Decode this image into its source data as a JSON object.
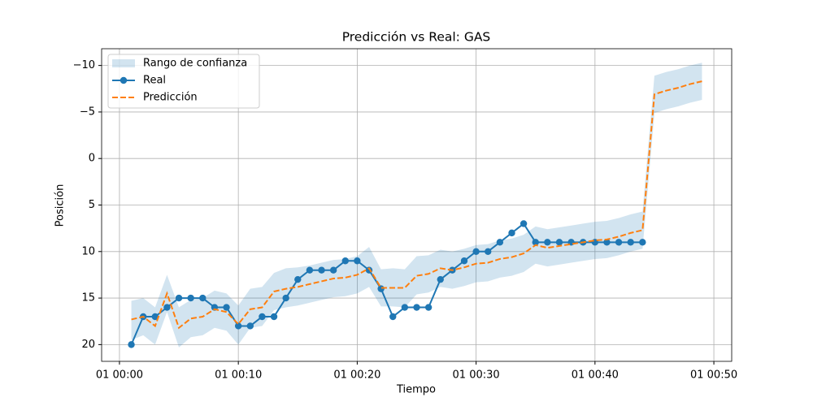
{
  "chart_data": {
    "type": "line",
    "title": "Predicción vs Real: GAS",
    "x_label": "Tiempo",
    "y_label": "Posición",
    "x": [
      "01 00:01",
      "01 00:02",
      "01 00:03",
      "01 00:04",
      "01 00:05",
      "01 00:06",
      "01 00:07",
      "01 00:08",
      "01 00:09",
      "01 00:10",
      "01 00:11",
      "01 00:12",
      "01 00:13",
      "01 00:14",
      "01 00:15",
      "01 00:16",
      "01 00:17",
      "01 00:18",
      "01 00:19",
      "01 00:20",
      "01 00:21",
      "01 00:22",
      "01 00:23",
      "01 00:24",
      "01 00:25",
      "01 00:26",
      "01 00:27",
      "01 00:28",
      "01 00:29",
      "01 00:30",
      "01 00:31",
      "01 00:32",
      "01 00:33",
      "01 00:34",
      "01 00:35",
      "01 00:36",
      "01 00:37",
      "01 00:38",
      "01 00:39",
      "01 00:40",
      "01 00:41",
      "01 00:42",
      "01 00:43",
      "01 00:44",
      "01 00:45",
      "01 00:46",
      "01 00:47",
      "01 00:48",
      "01 00:49"
    ],
    "band": {
      "name": "Rango de confianza",
      "color": "#1f77b4",
      "lower": [
        15.3,
        15.0,
        16.0,
        12.5,
        16.0,
        15.2,
        15.0,
        14.2,
        14.5,
        15.8,
        14.0,
        13.8,
        12.3,
        11.8,
        11.7,
        11.5,
        11.2,
        10.9,
        10.8,
        10.5,
        9.5,
        11.9,
        11.8,
        11.9,
        10.5,
        10.4,
        9.8,
        10.0,
        9.7,
        9.3,
        9.2,
        8.8,
        8.6,
        8.2,
        7.3,
        7.6,
        7.4,
        7.2,
        7.0,
        6.8,
        6.7,
        6.4,
        6.0,
        5.7,
        -8.9,
        -9.3,
        -9.6,
        -10.0,
        -10.3
      ],
      "upper": [
        19.5,
        19.0,
        20.0,
        16.5,
        20.3,
        19.2,
        19.0,
        18.2,
        18.5,
        20.0,
        18.2,
        18.0,
        16.3,
        16.0,
        15.8,
        15.5,
        15.2,
        14.9,
        14.8,
        14.5,
        13.8,
        15.9,
        15.9,
        16.0,
        14.6,
        14.4,
        13.8,
        14.0,
        13.7,
        13.3,
        13.2,
        12.8,
        12.6,
        12.2,
        11.3,
        11.6,
        11.4,
        11.2,
        11.0,
        10.8,
        10.7,
        10.4,
        10.0,
        9.7,
        -4.9,
        -5.3,
        -5.6,
        -6.0,
        -6.3
      ]
    },
    "series": [
      {
        "name": "Real",
        "color": "#1f77b4",
        "markers": true,
        "dashed": false,
        "values": [
          20,
          17,
          17,
          16,
          15,
          15,
          15,
          16,
          16,
          18,
          18,
          17,
          17,
          15,
          13,
          12,
          12,
          12,
          11,
          11,
          12,
          14,
          17,
          16,
          16,
          16,
          13,
          12,
          11,
          10,
          10,
          9,
          8,
          7,
          9,
          9,
          9,
          9,
          9,
          9,
          9,
          9,
          9,
          9,
          null,
          null,
          null,
          null,
          null
        ]
      },
      {
        "name": "Predicción",
        "color": "#ff7f0e",
        "markers": false,
        "dashed": true,
        "values": [
          17.3,
          17.0,
          18.0,
          14.5,
          18.2,
          17.2,
          17.0,
          16.2,
          16.5,
          17.8,
          16.2,
          16.0,
          14.3,
          14.0,
          13.8,
          13.5,
          13.2,
          12.9,
          12.8,
          12.5,
          11.8,
          13.9,
          13.9,
          13.9,
          12.6,
          12.4,
          11.8,
          12.0,
          11.7,
          11.3,
          11.2,
          10.8,
          10.6,
          10.2,
          9.3,
          9.6,
          9.4,
          9.2,
          9.0,
          8.8,
          8.7,
          8.4,
          8.0,
          7.7,
          -6.9,
          -7.3,
          -7.6,
          -8.0,
          -8.3
        ]
      }
    ],
    "xlim": [
      "01 00:00",
      "01 00:50"
    ],
    "xticks": [
      "01 00:00",
      "01 00:10",
      "01 00:20",
      "01 00:30",
      "01 00:40",
      "01 00:50"
    ],
    "ylim": [
      21.8,
      -11.8
    ],
    "yticks": [
      {
        "value": -10,
        "label": "−10"
      },
      {
        "value": -5,
        "label": "−5"
      },
      0,
      5,
      10,
      15,
      20
    ],
    "grid": true,
    "legend": "upper-left"
  }
}
